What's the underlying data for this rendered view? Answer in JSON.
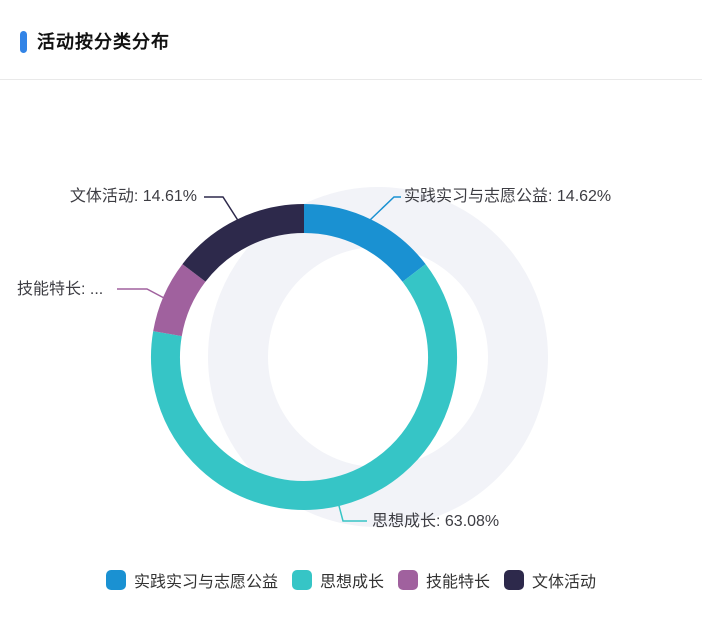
{
  "header": {
    "title": "活动按分类分布"
  },
  "chart_data": {
    "type": "pie",
    "title": "活动按分类分布",
    "donut": true,
    "start_angle_deg": -90,
    "direction": "clockwise",
    "legend_position": "bottom",
    "unit": "%",
    "points": [
      {
        "name": "实践实习与志愿公益",
        "value": 14.62,
        "color": "#1a91d2",
        "label": "实践实习与志愿公益: 14.62%"
      },
      {
        "name": "思想成长",
        "value": 63.08,
        "color": "#36c5c6",
        "label": "思想成长: 63.08%"
      },
      {
        "name": "技能特长",
        "value": 7.69,
        "color": "#a0619e",
        "label": "技能特长: ..."
      },
      {
        "name": "文体活动",
        "value": 14.61,
        "color": "#2d294b",
        "label": "文体活动: 14.61%"
      }
    ]
  },
  "colors": {
    "accent_bar": "#3284e6",
    "shadow_ring": "#f2f3f8",
    "divider": "#e9e9e9",
    "label_text": "#3d3d43"
  }
}
